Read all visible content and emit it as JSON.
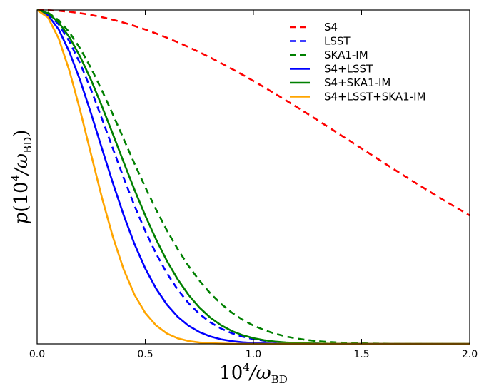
{
  "chart_data": {
    "type": "line",
    "title": "",
    "xlabel": "10^4/ω_BD",
    "ylabel": "p(10^4/ω_BD)",
    "xlim": [
      0.0,
      2.0
    ],
    "ylim": [
      0.0,
      1.0
    ],
    "xticks": [
      "0.0",
      "0.5",
      "1.0",
      "1.5",
      "2.0"
    ],
    "yticks": [],
    "legend_position": "top-right",
    "x": [
      0.0,
      0.05,
      0.1,
      0.15,
      0.2,
      0.25,
      0.3,
      0.35,
      0.4,
      0.45,
      0.5,
      0.55,
      0.6,
      0.65,
      0.7,
      0.75,
      0.8,
      0.85,
      0.9,
      0.95,
      1.0,
      1.05,
      1.1,
      1.15,
      1.2,
      1.25,
      1.3,
      1.35,
      1.4,
      1.45,
      1.5,
      1.55,
      1.6,
      1.65,
      1.7,
      1.75,
      1.8,
      1.85,
      1.9,
      1.95,
      2.0
    ],
    "series": [
      {
        "name": "S4",
        "color": "#ff0000",
        "dash": "dashed",
        "values": [
          1.0,
          0.9994,
          0.9976,
          0.9946,
          0.9904,
          0.985,
          0.9785,
          0.9709,
          0.9622,
          0.9524,
          0.9416,
          0.9298,
          0.9171,
          0.9035,
          0.889,
          0.8738,
          0.8578,
          0.8411,
          0.8238,
          0.8059,
          0.7874,
          0.7685,
          0.7491,
          0.7294,
          0.7093,
          0.689,
          0.6685,
          0.6478,
          0.627,
          0.6061,
          0.5852,
          0.5644,
          0.5436,
          0.5229,
          0.5024,
          0.4821,
          0.462,
          0.4422,
          0.4227,
          0.4036,
          0.3848
        ]
      },
      {
        "name": "LSST",
        "color": "#0000ff",
        "dash": "dashed",
        "values": [
          1.0,
          0.9889,
          0.9566,
          0.9053,
          0.8383,
          0.7596,
          0.6737,
          0.5849,
          0.4974,
          0.4143,
          0.3381,
          0.2703,
          0.2118,
          0.1625,
          0.1222,
          0.09,
          0.065,
          0.0459,
          0.0318,
          0.0216,
          0.0143,
          0.0093,
          0.006,
          0.0037,
          0.0023,
          0.0014,
          0.0008,
          0.0005,
          0.0003,
          0.0002,
          0.0001,
          0.0,
          0.0,
          0.0,
          0.0,
          0.0,
          0.0,
          0.0,
          0.0,
          0.0,
          0.0
        ]
      },
      {
        "name": "SKA1-IM",
        "color": "#008000",
        "dash": "dashed",
        "values": [
          1.0,
          0.9922,
          0.9694,
          0.9326,
          0.8837,
          0.8248,
          0.7584,
          0.6872,
          0.6138,
          0.5405,
          0.4694,
          0.4022,
          0.34,
          0.2837,
          0.2335,
          0.1897,
          0.152,
          0.1202,
          0.0938,
          0.0722,
          0.0549,
          0.0412,
          0.0305,
          0.0223,
          0.0161,
          0.0114,
          0.008,
          0.0056,
          0.0038,
          0.0026,
          0.0017,
          0.0011,
          0.0007,
          0.0005,
          0.0003,
          0.0002,
          0.0001,
          0.0,
          0.0,
          0.0,
          0.0
        ]
      },
      {
        "name": "S4+LSST",
        "color": "#0000ff",
        "dash": "solid",
        "values": [
          1.0,
          0.9849,
          0.9415,
          0.8736,
          0.7869,
          0.6882,
          0.5844,
          0.4818,
          0.3856,
          0.2996,
          0.2261,
          0.1656,
          0.1178,
          0.0813,
          0.0545,
          0.0355,
          0.0224,
          0.0137,
          0.0082,
          0.0047,
          0.0026,
          0.0014,
          0.0008,
          0.0004,
          0.0002,
          0.0001,
          0.0,
          0.0,
          0.0,
          0.0,
          0.0,
          0.0,
          0.0,
          0.0,
          0.0,
          0.0,
          0.0,
          0.0,
          0.0,
          0.0,
          0.0
        ]
      },
      {
        "name": "S4+SKA1-IM",
        "color": "#008000",
        "dash": "solid",
        "values": [
          1.0,
          0.9904,
          0.9626,
          0.918,
          0.859,
          0.7889,
          0.7108,
          0.6282,
          0.5445,
          0.4624,
          0.3845,
          0.3128,
          0.2488,
          0.1934,
          0.1469,
          0.109,
          0.079,
          0.0559,
          0.0386,
          0.026,
          0.0171,
          0.011,
          0.0069,
          0.0042,
          0.0025,
          0.0015,
          0.0009,
          0.0005,
          0.0003,
          0.0002,
          0.0001,
          0.0,
          0.0,
          0.0,
          0.0,
          0.0,
          0.0,
          0.0,
          0.0,
          0.0,
          0.0
        ]
      },
      {
        "name": "S4+LSST+SKA1-IM",
        "color": "#ffa500",
        "dash": "solid",
        "values": [
          1.0,
          0.9778,
          0.9141,
          0.8167,
          0.6963,
          0.5655,
          0.4368,
          0.3205,
          0.2233,
          0.1477,
          0.0927,
          0.0552,
          0.0312,
          0.0167,
          0.0085,
          0.0041,
          0.0019,
          0.0008,
          0.0003,
          0.0001,
          0.0001,
          0.0,
          0.0,
          0.0,
          0.0,
          0.0,
          0.0,
          0.0,
          0.0,
          0.0,
          0.0,
          0.0,
          0.0,
          0.0,
          0.0,
          0.0,
          0.0,
          0.0,
          0.0,
          0.0,
          0.0
        ]
      }
    ]
  }
}
